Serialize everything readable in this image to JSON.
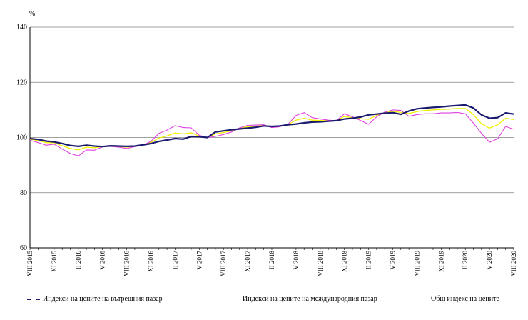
{
  "chart_data": {
    "type": "line",
    "ylabel": "%",
    "ylim": [
      60,
      140
    ],
    "yticks": [
      60,
      80,
      100,
      120,
      140
    ],
    "grid": true,
    "legend_position": "bottom",
    "x_tick_labels": [
      "VIII 2015",
      "XI 2015",
      "II 2016",
      "V 2016",
      "VIII 2016",
      "XI 2016",
      "II 2017",
      "V 2017",
      "VIII 2017",
      "XI 2017",
      "II 2018",
      "V 2018",
      "VIII 2018",
      "XI 2018",
      "II 2019",
      "V 2019",
      "VIII 2019",
      "XI 2019",
      "II 2020",
      "V 2020",
      "VIII 2020"
    ],
    "x": [
      "VIII 2015",
      "IX 2015",
      "X 2015",
      "XI 2015",
      "XII 2015",
      "I 2016",
      "II 2016",
      "III 2016",
      "IV 2016",
      "V 2016",
      "VI 2016",
      "VII 2016",
      "VIII 2016",
      "IX 2016",
      "X 2016",
      "XI 2016",
      "XII 2016",
      "I 2017",
      "II 2017",
      "III 2017",
      "IV 2017",
      "V 2017",
      "VI 2017",
      "VII 2017",
      "VIII 2017",
      "IX 2017",
      "X 2017",
      "XI 2017",
      "XII 2017",
      "I 2018",
      "II 2018",
      "III 2018",
      "IV 2018",
      "V 2018",
      "VI 2018",
      "VII 2018",
      "VIII 2018",
      "IX 2018",
      "X 2018",
      "XI 2018",
      "XII 2018",
      "I 2019",
      "II 2019",
      "III 2019",
      "IV 2019",
      "V 2019",
      "VI 2019",
      "VII 2019",
      "VIII 2019",
      "IX 2019",
      "X 2019",
      "XI 2019",
      "XII 2019",
      "I 2020",
      "II 2020",
      "III 2020",
      "IV 2020",
      "V 2020",
      "VI 2020",
      "VII 2020",
      "VIII 2020"
    ],
    "series": [
      {
        "name": "Индекси на цените на вътрешния пазар",
        "color": "#1a1a6e",
        "values": [
          99.6,
          99.3,
          98.7,
          98.4,
          97.8,
          97.1,
          96.8,
          97.2,
          96.9,
          96.7,
          97.0,
          96.9,
          96.8,
          96.9,
          97.3,
          97.8,
          98.6,
          99.1,
          99.6,
          99.4,
          100.4,
          100.3,
          100.0,
          102.0,
          102.4,
          102.8,
          103.1,
          103.4,
          103.7,
          104.2,
          104.0,
          104.2,
          104.6,
          104.9,
          105.3,
          105.6,
          105.7,
          105.9,
          106.1,
          106.7,
          107.0,
          107.4,
          108.2,
          108.5,
          108.8,
          109.0,
          108.4,
          109.6,
          110.4,
          110.7,
          110.9,
          111.1,
          111.4,
          111.6,
          111.8,
          110.7,
          108.2,
          107.0,
          107.2,
          108.9,
          108.5
        ]
      },
      {
        "name": "Индекси на цените на международния пазар",
        "color": "#e040e0",
        "values": [
          99.0,
          98.2,
          97.2,
          97.6,
          95.8,
          94.2,
          93.3,
          95.5,
          95.4,
          96.6,
          96.8,
          96.5,
          96.0,
          96.7,
          97.2,
          98.6,
          101.5,
          102.7,
          104.3,
          103.6,
          103.5,
          100.8,
          100.0,
          100.4,
          101.1,
          102.0,
          103.5,
          104.4,
          104.5,
          104.6,
          103.6,
          103.9,
          104.8,
          108.0,
          109.0,
          107.2,
          106.7,
          106.3,
          106.1,
          108.6,
          107.5,
          106.2,
          104.8,
          107.5,
          109.2,
          110.0,
          109.8,
          107.7,
          108.3,
          108.6,
          108.6,
          108.9,
          108.9,
          109.1,
          108.6,
          105.2,
          101.5,
          98.3,
          99.5,
          104.0,
          103.0
        ]
      },
      {
        "name": "Общ индекс на цените",
        "color": "#f0f000",
        "values": [
          99.4,
          98.9,
          98.1,
          98.1,
          97.0,
          96.0,
          95.5,
          96.5,
          96.3,
          96.7,
          96.9,
          96.7,
          96.5,
          96.8,
          97.3,
          98.2,
          99.8,
          100.6,
          101.6,
          101.3,
          101.7,
          100.5,
          100.0,
          101.3,
          101.8,
          102.4,
          103.3,
          103.9,
          104.1,
          104.4,
          103.8,
          104.1,
          104.7,
          106.3,
          107.0,
          106.3,
          106.2,
          106.1,
          106.1,
          107.6,
          107.2,
          106.8,
          106.6,
          108.0,
          109.0,
          109.5,
          109.1,
          108.7,
          109.4,
          109.8,
          110.0,
          110.2,
          110.3,
          110.5,
          110.5,
          108.3,
          105.0,
          103.4,
          104.6,
          107.0,
          106.5
        ]
      }
    ]
  }
}
